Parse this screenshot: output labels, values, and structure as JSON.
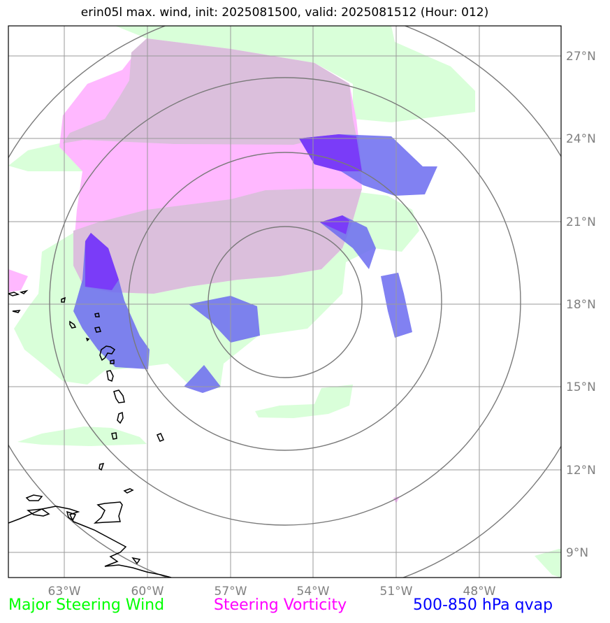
{
  "title": "erin05l max. wind, init: 2025081500, valid: 2025081512 (Hour: 012)",
  "lon_labels": [
    "63°W",
    "60°W",
    "57°W",
    "54°W",
    "51°W",
    "48°W"
  ],
  "lat_labels": [
    "27°N",
    "24°N",
    "21°N",
    "18°N",
    "15°N",
    "12°N",
    "9°N"
  ],
  "legend": [
    {
      "label": "Major Steering Wind",
      "color": "#00ff00"
    },
    {
      "label": "Steering Vorticity",
      "color": "#ff00ff"
    },
    {
      "label": "500-850 hPa qvap",
      "color": "#0000ff"
    }
  ],
  "layers": {
    "wind_color": "#c8ffc8",
    "vorticity_color": "#ff66ff",
    "overlap_color": "#d8b4e2",
    "qvap_color": "#4b4bff",
    "qvap_overlap_color": "#6b2bff"
  }
}
